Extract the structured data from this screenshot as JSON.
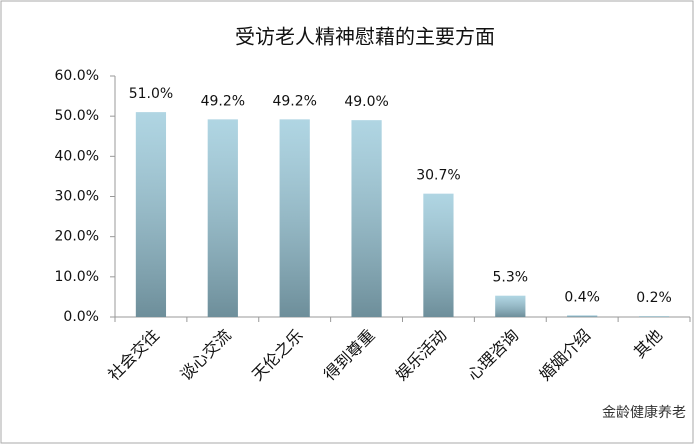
{
  "chart_data": {
    "type": "bar",
    "title": "受访老人精神慰藉的主要方面",
    "categories": [
      "社会交往",
      "谈心交流",
      "天伦之乐",
      "得到尊重",
      "娱乐活动",
      "心理咨询",
      "婚姻介绍",
      "其他"
    ],
    "values": [
      51.0,
      49.2,
      49.2,
      49.0,
      30.7,
      5.3,
      0.4,
      0.2
    ],
    "value_labels": [
      "51.0%",
      "49.2%",
      "49.2%",
      "49.0%",
      "30.7%",
      "5.3%",
      "0.4%",
      "0.2%"
    ],
    "color": "#9ccbdc",
    "ylim": [
      0,
      60
    ],
    "yticks": [
      {
        "value": 0,
        "label": "0.0%"
      },
      {
        "value": 10,
        "label": "10.0%"
      },
      {
        "value": 20,
        "label": "20.0%"
      },
      {
        "value": 30,
        "label": "30.0%"
      },
      {
        "value": 40,
        "label": "40.0%"
      },
      {
        "value": 50,
        "label": "50.0%"
      },
      {
        "value": 60,
        "label": "60.0%"
      }
    ],
    "grid": false,
    "watermark": "金龄健康养老"
  }
}
